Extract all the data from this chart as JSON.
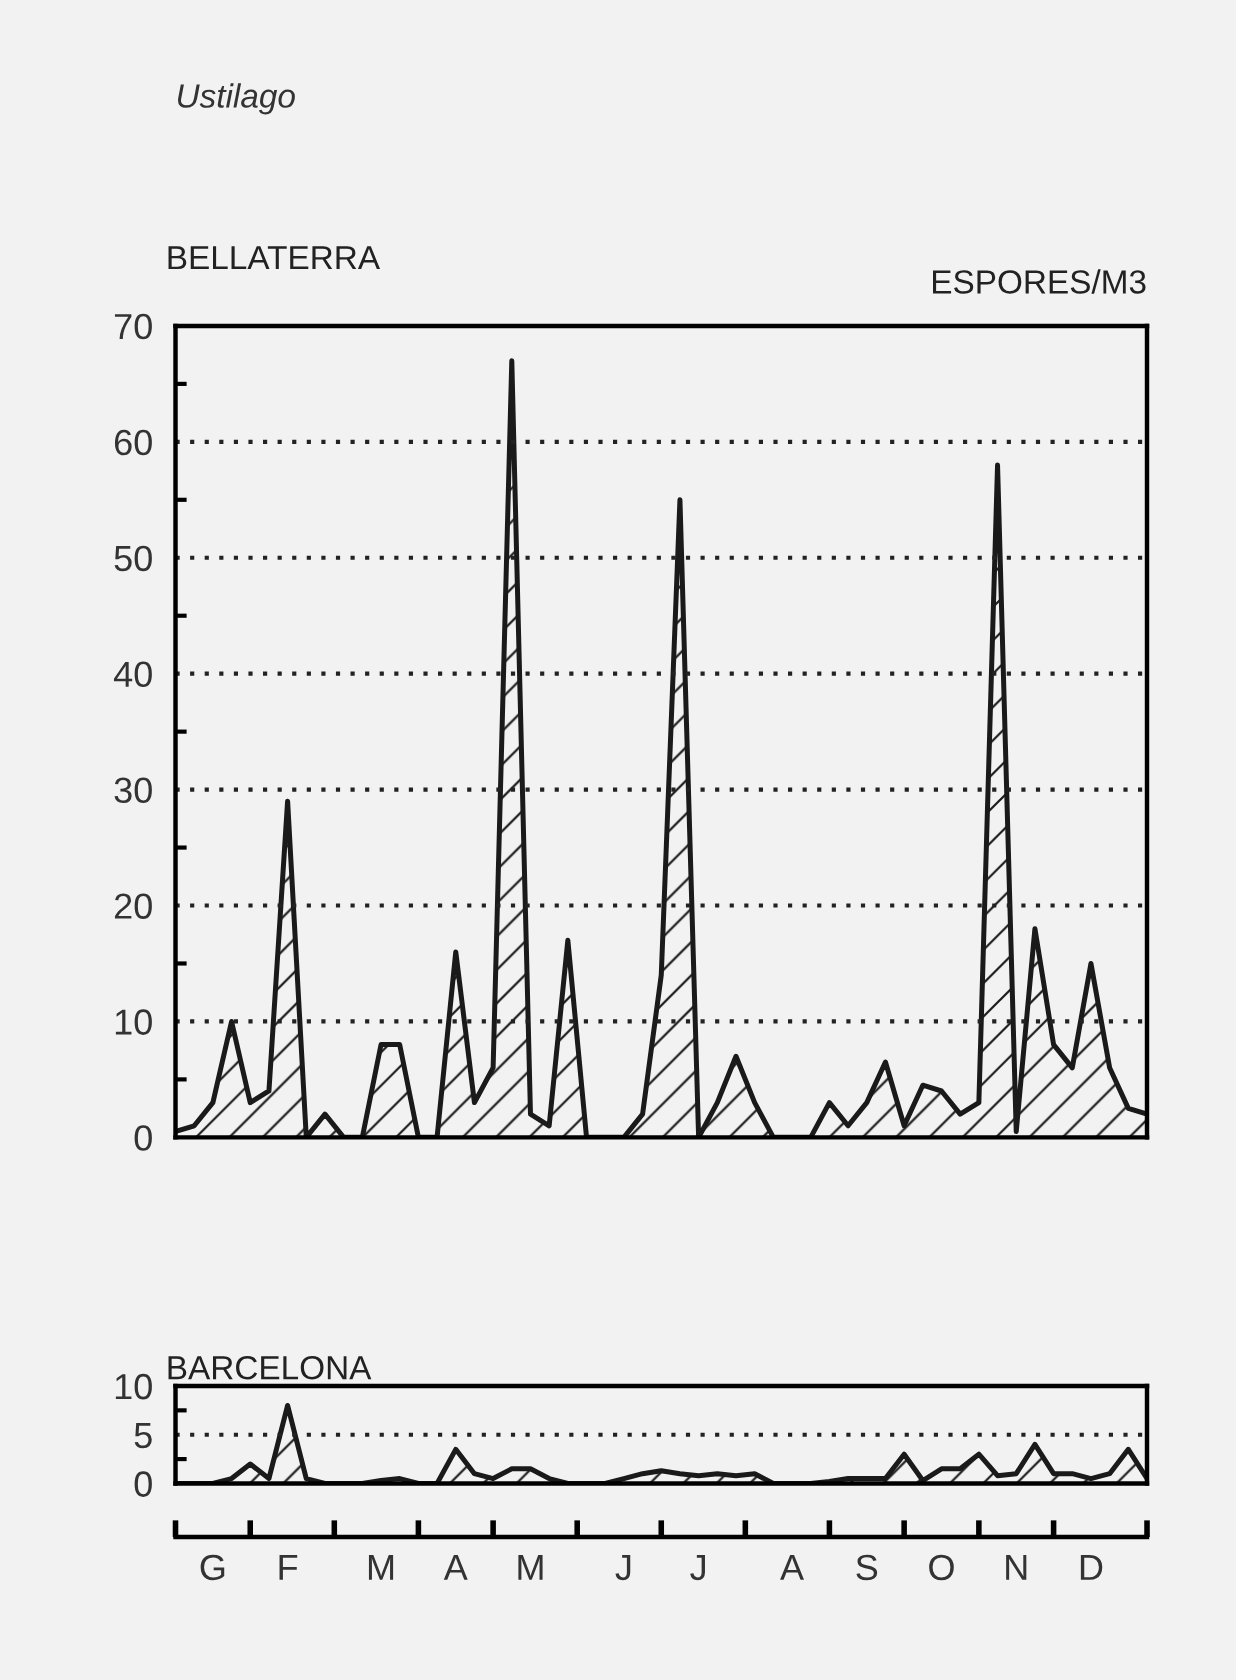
{
  "chart_data": [
    {
      "type": "area",
      "title": "Ustilago",
      "subtitle": "BELLATERRA",
      "ylabel": "ESPORES/M3",
      "categories": [
        null,
        null,
        null,
        null,
        null,
        null,
        null,
        null,
        null,
        null,
        null,
        null,
        null,
        null,
        null,
        null,
        null,
        null,
        null,
        null,
        null,
        null,
        null,
        null,
        null,
        null,
        null,
        null,
        null,
        null,
        null,
        null,
        null,
        null,
        null,
        null,
        null,
        null,
        null,
        null,
        null,
        null,
        null,
        null,
        null,
        null,
        null,
        null,
        null,
        null,
        null,
        null,
        null
      ],
      "series": [
        {
          "color": "#1a1a1a",
          "values": [
            0.5,
            1,
            3,
            10,
            3,
            4,
            29,
            0,
            2,
            0,
            0,
            8,
            8,
            0,
            0,
            16,
            3,
            6,
            67,
            2,
            1,
            17,
            0,
            0,
            0,
            2,
            14,
            55,
            0,
            3,
            7,
            3,
            0,
            0,
            0,
            3,
            1,
            3,
            6.5,
            1,
            4.5,
            4,
            2,
            3,
            58,
            0.5,
            18,
            8,
            6,
            15,
            6,
            2.5,
            2
          ]
        }
      ],
      "ylim": [
        0,
        70
      ],
      "yticks": [
        0,
        {
          "value": 5,
          "label": null
        },
        10,
        {
          "value": 15,
          "label": null
        },
        20,
        {
          "value": 25,
          "label": null
        },
        30,
        {
          "value": 35,
          "label": null
        },
        40,
        {
          "value": 45,
          "label": null
        },
        50,
        {
          "value": 55,
          "label": null
        },
        60,
        {
          "value": 65,
          "label": null
        },
        70
      ],
      "grid": "y",
      "line_style": "solid",
      "tick_labels": "y"
    },
    {
      "type": "area",
      "subtitle": "BARCELONA",
      "categories": [
        null,
        null,
        "G",
        null,
        null,
        null,
        "F",
        null,
        null,
        null,
        null,
        "M",
        null,
        null,
        null,
        "A",
        null,
        null,
        null,
        "M",
        null,
        null,
        null,
        null,
        "J",
        null,
        null,
        null,
        "J",
        null,
        null,
        null,
        null,
        "A",
        null,
        null,
        null,
        "S",
        null,
        null,
        null,
        "O",
        null,
        null,
        null,
        "N",
        null,
        null,
        null,
        "D",
        null,
        null,
        null
      ],
      "series": [
        {
          "color": "#1a1a1a",
          "values": [
            0,
            0,
            0,
            0.5,
            2,
            0.5,
            8,
            0.5,
            0,
            0,
            0,
            0.3,
            0.5,
            0,
            0,
            3.5,
            1,
            0.5,
            1.5,
            1.5,
            0.5,
            0,
            0,
            0,
            0.5,
            1,
            1.3,
            1,
            0.8,
            1,
            0.8,
            1,
            0,
            0,
            0,
            0.2,
            0.5,
            0.5,
            0.5,
            3,
            0.3,
            1.5,
            1.5,
            3,
            0.8,
            1,
            4,
            1,
            1,
            0.5,
            1,
            3.5,
            0.5
          ]
        }
      ],
      "ylim": [
        0,
        10
      ],
      "yticks": [
        0,
        {
          "value": 2.5,
          "label": null
        },
        5,
        {
          "value": 7.5,
          "label": null
        },
        10
      ],
      "grid": "y",
      "line_style": "solid"
    }
  ]
}
